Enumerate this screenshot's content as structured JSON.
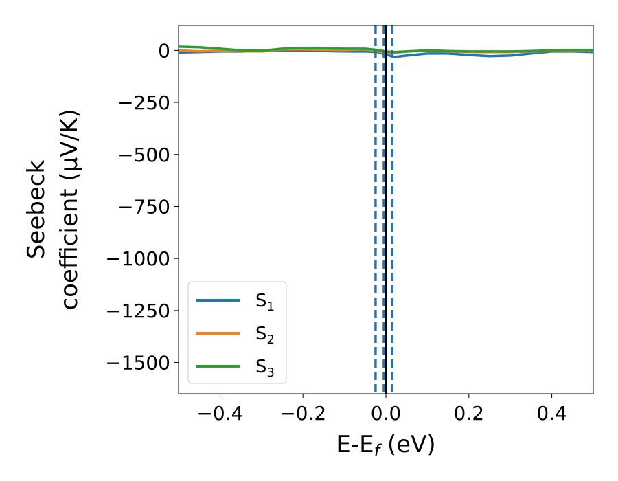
{
  "chart_data": {
    "type": "line",
    "title": "",
    "xlabel": {
      "main": "E-E",
      "sub": "f",
      "unit": " (eV)"
    },
    "ylabel": {
      "line1": "Seebeck",
      "line2": "coefficient  (μV/K)"
    },
    "xlim": [
      -0.5,
      0.5
    ],
    "ylim": [
      -1650,
      120
    ],
    "xticks": [
      -0.4,
      -0.2,
      0.0,
      0.2,
      0.4
    ],
    "xtick_labels": [
      "−0.4",
      "−0.2",
      "0.0",
      "0.2",
      "0.4"
    ],
    "yticks": [
      0,
      -250,
      -500,
      -750,
      -1000,
      -1250,
      -1500
    ],
    "ytick_labels": [
      "0",
      "−250",
      "−500",
      "−750",
      "−1000",
      "−1250",
      "−1500"
    ],
    "grid": false,
    "legend_position": "lower-left",
    "vlines": [
      {
        "x": -0.025,
        "style": "dashed",
        "color": "#1f77b4"
      },
      {
        "x": -0.005,
        "style": "dashed",
        "color": "#1f77b4"
      },
      {
        "x": 0.015,
        "style": "dashed",
        "color": "#1f77b4"
      },
      {
        "x": 0.0,
        "style": "solid",
        "color": "#000000"
      }
    ],
    "series": [
      {
        "name": "S",
        "sub": "1",
        "color": "#1f77b4",
        "x": [
          -0.5,
          -0.45,
          -0.4,
          -0.35,
          -0.3,
          -0.25,
          -0.2,
          -0.15,
          -0.1,
          -0.05,
          -0.02,
          0.0,
          0.02,
          0.05,
          0.1,
          0.15,
          0.2,
          0.25,
          0.3,
          0.35,
          0.4,
          0.45,
          0.5
        ],
        "y": [
          -10,
          -8,
          -5,
          -5,
          -2,
          0,
          0,
          -3,
          -5,
          -5,
          -8,
          -20,
          -32,
          -25,
          -15,
          -15,
          -22,
          -28,
          -25,
          -15,
          -5,
          -5,
          -8
        ]
      },
      {
        "name": "S",
        "sub": "2",
        "color": "#ff7f0e",
        "x": [
          -0.5,
          -0.45,
          -0.4,
          -0.35,
          -0.3,
          -0.25,
          -0.2,
          -0.15,
          -0.1,
          -0.05,
          -0.02,
          0.0,
          0.02,
          0.05,
          0.1,
          0.15,
          0.2,
          0.25,
          0.3,
          0.35,
          0.4,
          0.45,
          0.5
        ],
        "y": [
          0,
          -5,
          0,
          -3,
          -5,
          5,
          5,
          3,
          2,
          5,
          -5,
          -10,
          -12,
          -5,
          -2,
          -5,
          -8,
          -8,
          -8,
          -5,
          -3,
          -2,
          0
        ]
      },
      {
        "name": "S",
        "sub": "3",
        "color": "#2ca02c",
        "x": [
          -0.5,
          -0.45,
          -0.4,
          -0.35,
          -0.3,
          -0.25,
          -0.2,
          -0.15,
          -0.1,
          -0.05,
          -0.02,
          0.0,
          0.02,
          0.05,
          0.1,
          0.15,
          0.2,
          0.25,
          0.3,
          0.35,
          0.4,
          0.45,
          0.5
        ],
        "y": [
          18,
          15,
          8,
          0,
          -2,
          8,
          12,
          10,
          8,
          8,
          2,
          -5,
          -8,
          -5,
          0,
          -3,
          -5,
          -5,
          -5,
          -3,
          0,
          2,
          2
        ]
      }
    ]
  }
}
